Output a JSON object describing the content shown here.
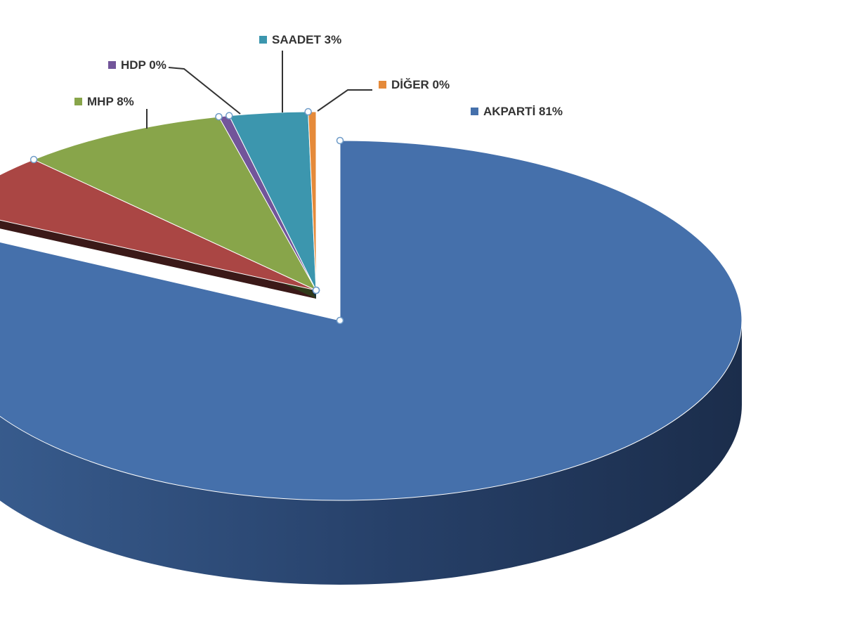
{
  "chart_data": {
    "type": "pie",
    "style": "3d-exploded",
    "slices": [
      {
        "name": "AKPARTİ",
        "label": "AKPARTİ 81%",
        "value": 81,
        "color": "#4570AB"
      },
      {
        "name": "",
        "label": "",
        "value": 5.4,
        "color": "#AA4644"
      },
      {
        "name": "MHP",
        "label": "MHP 8%",
        "value": 8,
        "color": "#88A54A"
      },
      {
        "name": "HDP",
        "label": "HDP 0%",
        "value": 0.4,
        "color": "#72559A"
      },
      {
        "name": "SAADET",
        "label": "SAADET 3%",
        "value": 3,
        "color": "#3C96AE"
      },
      {
        "name": "DİĞER",
        "label": "DİĞER 0%",
        "value": 0.3,
        "color": "#E58A3A"
      }
    ]
  }
}
